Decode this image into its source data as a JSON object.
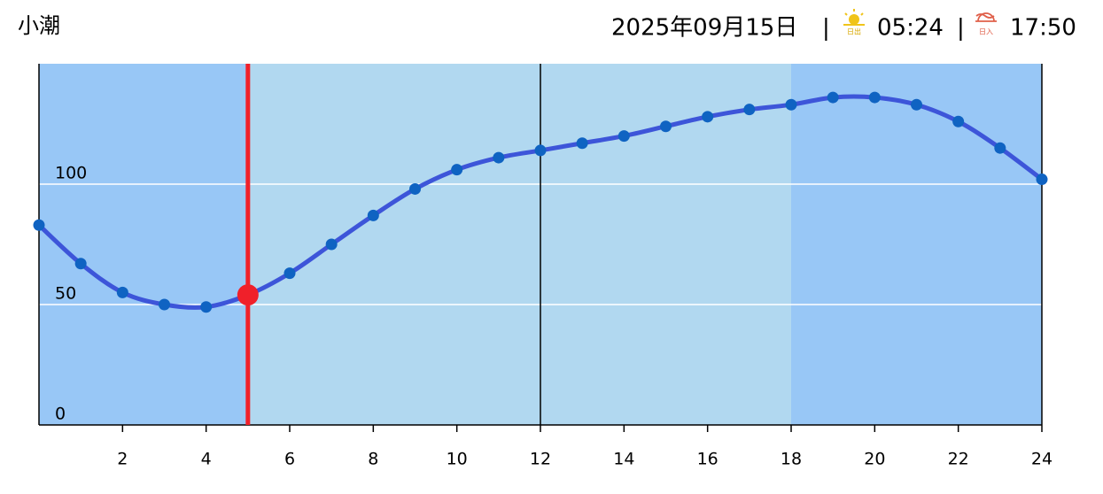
{
  "header": {
    "tide_name": "小潮",
    "date": "2025年09月15日",
    "separator": "|",
    "sunrise_icon_label": "日出",
    "sunrise": "05:24",
    "sunset_icon_label": "日入",
    "sunset": "17:50"
  },
  "chart_data": {
    "type": "line",
    "x": [
      0,
      1,
      2,
      3,
      4,
      5,
      6,
      7,
      8,
      9,
      10,
      11,
      12,
      13,
      14,
      15,
      16,
      17,
      18,
      19,
      20,
      21,
      22,
      23,
      24
    ],
    "series": [
      {
        "color": "#3d55d9",
        "point_color": "#0f63c2",
        "values": [
          83,
          67,
          55,
          50,
          49,
          54,
          63,
          75,
          87,
          98,
          106,
          111,
          114,
          117,
          120,
          124,
          128,
          131,
          133,
          136,
          136,
          133,
          126,
          115,
          102
        ]
      }
    ],
    "current_x": 5,
    "current_color": "#f0202a",
    "daylight_range": [
      5,
      18
    ],
    "night_color": "#98c7f6",
    "day_color": "#b1d8f0",
    "noon_x": 12,
    "xlim": [
      0,
      24
    ],
    "xticks": [
      2,
      4,
      6,
      8,
      10,
      12,
      14,
      16,
      18,
      20,
      22,
      24
    ],
    "ylim": [
      0,
      150
    ],
    "yticks": [
      0,
      50,
      100
    ],
    "grid": true
  }
}
